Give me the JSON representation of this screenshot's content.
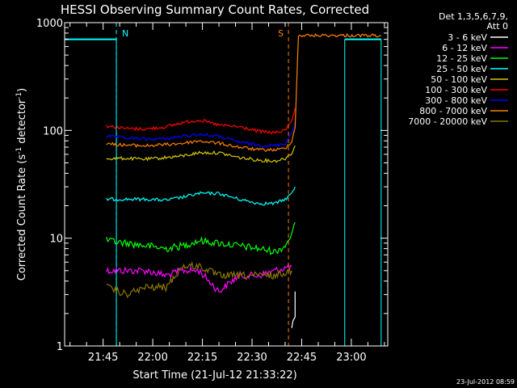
{
  "chart_data": {
    "type": "line",
    "title": "HESSI Observing Summary Count Rates, Corrected",
    "xlabel": "Start Time (21-Jul-12 21:33:22)",
    "ylabel_main": "Corrected Count Rate (s",
    "ylabel_sup1": "-1",
    "ylabel_mid": " detector",
    "ylabel_sup2": "-1",
    "ylabel_end": ")",
    "y_scale": "log",
    "ylim": [
      1,
      1000
    ],
    "xlim": [
      "21:33:22",
      "23:11:00"
    ],
    "x_ticks": [
      "21:45",
      "22:00",
      "22:15",
      "22:30",
      "22:45",
      "23:00"
    ],
    "y_ticks": [
      "1",
      "10",
      "100",
      "1000"
    ],
    "legend_header": [
      "Det 1,3,5,6,7,9,",
      "Att 0"
    ],
    "legend_position": "right-outside",
    "markers": [
      {
        "label": "N",
        "time": "21:49",
        "color": "#00ffff"
      },
      {
        "label": "S",
        "time": "22:41",
        "color": "#ff8000"
      }
    ],
    "series": [
      {
        "name": "3 - 6 keV",
        "color": "#ffffff",
        "x": [
          "22:42",
          "22:43",
          "22:43",
          "22:43"
        ],
        "y": [
          1.5,
          2,
          2.8,
          3.2
        ]
      },
      {
        "name": "6 - 12 keV",
        "color": "#ff00ff",
        "x": [
          "21:46",
          "21:52",
          "21:58",
          "22:04",
          "22:09",
          "22:14",
          "22:20",
          "22:26",
          "22:32",
          "22:37",
          "22:42"
        ],
        "y": [
          5,
          5,
          5,
          4.5,
          5,
          5,
          3.2,
          4.5,
          4.5,
          5,
          5.5
        ]
      },
      {
        "name": "12 - 25 keV",
        "color": "#00ff00",
        "x": [
          "21:46",
          "21:52",
          "21:58",
          "22:04",
          "22:09",
          "22:14",
          "22:20",
          "22:26",
          "22:32",
          "22:37",
          "22:40",
          "22:42",
          "22:43"
        ],
        "y": [
          9.5,
          9,
          8.5,
          8,
          8.5,
          9.5,
          9,
          8.5,
          8,
          7.5,
          8.5,
          11,
          14
        ]
      },
      {
        "name": "25 - 50 keV",
        "color": "#00ffff",
        "x": [
          "21:46",
          "21:52",
          "21:58",
          "22:04",
          "22:09",
          "22:14",
          "22:20",
          "22:26",
          "22:32",
          "22:37",
          "22:40",
          "22:42",
          "22:43"
        ],
        "y": [
          23,
          23,
          23,
          22.5,
          24,
          26,
          26,
          23,
          21,
          21,
          23,
          26,
          30
        ]
      },
      {
        "name": "50 - 100 keV",
        "color": "#d4c800",
        "x": [
          "21:46",
          "21:52",
          "21:58",
          "22:04",
          "22:09",
          "22:14",
          "22:20",
          "22:26",
          "22:32",
          "22:37",
          "22:40",
          "22:42",
          "22:43"
        ],
        "y": [
          55,
          55,
          54,
          56,
          58,
          62,
          62,
          56,
          53,
          52,
          55,
          62,
          72
        ]
      },
      {
        "name": "100 - 300 keV",
        "color": "#ff0000",
        "x": [
          "21:46",
          "21:52",
          "21:58",
          "22:04",
          "22:09",
          "22:14",
          "22:20",
          "22:26",
          "22:32",
          "22:37",
          "22:40",
          "22:42",
          "22:43"
        ],
        "y": [
          110,
          104,
          103,
          108,
          118,
          125,
          112,
          108,
          98,
          95,
          100,
          125,
          160
        ]
      },
      {
        "name": "300 - 800 keV",
        "color": "#0000ff",
        "x": [
          "21:46",
          "21:52",
          "21:58",
          "22:04",
          "22:09",
          "22:14",
          "22:20",
          "22:26",
          "22:32",
          "22:37",
          "22:40",
          "22:42",
          "22:43"
        ],
        "y": [
          88,
          85,
          83,
          84,
          88,
          92,
          88,
          78,
          73,
          72,
          76,
          95,
          120
        ]
      },
      {
        "name": "800 - 7000 keV",
        "color": "#ff8000",
        "x": [
          "21:46",
          "21:52",
          "21:58",
          "22:04",
          "22:09",
          "22:14",
          "22:20",
          "22:26",
          "22:32",
          "22:37",
          "22:40",
          "22:42",
          "22:43",
          "22:44",
          "23:09"
        ],
        "y": [
          75,
          73,
          72,
          74,
          76,
          80,
          76,
          70,
          66,
          66,
          68,
          80,
          105,
          760,
          760
        ]
      },
      {
        "name": "7000 - 20000 keV",
        "color": "#8b7500",
        "x": [
          "21:46",
          "21:52",
          "21:58",
          "22:04",
          "22:09",
          "22:14",
          "22:20",
          "22:26",
          "22:32",
          "22:37",
          "22:42"
        ],
        "y": [
          3.5,
          3,
          3.5,
          3.5,
          5.5,
          5.5,
          4.5,
          4.5,
          4.5,
          4.5,
          5
        ]
      }
    ],
    "attenuator_state": {
      "color": "#00ffff",
      "segments": [
        {
          "x": [
            "21:33:22",
            "21:49"
          ],
          "y": 700
        },
        {
          "x": [
            "22:58",
            "23:09"
          ],
          "y": 700
        }
      ]
    },
    "footer": "23-Jul-2012 08:59"
  }
}
